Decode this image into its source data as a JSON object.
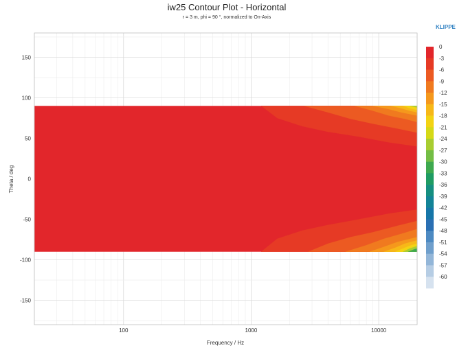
{
  "chart_data": {
    "type": "heatmap",
    "title": "iw25 Contour Plot - Horizontal",
    "subtitle": "r = 3 m, phi = 90 °, normalized to On-Axis",
    "xlabel": "Frequency / Hz",
    "ylabel": "Theta / deg",
    "x_scale": "log",
    "xlim": [
      20,
      20000
    ],
    "ylim": [
      -180,
      180
    ],
    "x_ticks": [
      "100",
      "1000",
      "10000"
    ],
    "y_ticks": [
      "150",
      "100",
      "50",
      "0",
      "-50",
      "-100",
      "-150"
    ],
    "data_theta_range": [
      -90,
      90
    ],
    "colorbar": {
      "levels": [
        0,
        -3,
        -6,
        -9,
        -12,
        -15,
        -18,
        -21,
        -24,
        -27,
        -30,
        -33,
        -36,
        -39,
        -42,
        -45,
        -48,
        -51,
        -54,
        -57,
        -60
      ],
      "labels": [
        "0",
        "-3",
        "-6",
        "-9",
        "-12",
        "-15",
        "-18",
        "-21",
        "-24",
        "-27",
        "-30",
        "-33",
        "-36",
        "-39",
        "-42",
        "-45",
        "-48",
        "-51",
        "-54",
        "-57",
        "-60"
      ],
      "colors": [
        "#e2262b",
        "#e63a25",
        "#ec5a22",
        "#f07a1f",
        "#f5981c",
        "#f7b818",
        "#f3d313",
        "#d5d917",
        "#a8cd31",
        "#73bd45",
        "#3ea94f",
        "#1f9c63",
        "#158f80",
        "#138497",
        "#1676a8",
        "#2a6fb3",
        "#4d8ac2",
        "#6f9fcc",
        "#93b6d8",
        "#b6cde4",
        "#d6e2ef"
      ]
    },
    "contours": {
      "upper": [
        {
          "level": -3,
          "edge": [
            [
              1200,
              90
            ],
            [
              1600,
              75
            ],
            [
              2500,
              65
            ],
            [
              4000,
              58
            ],
            [
              7000,
              52
            ],
            [
              12000,
              45
            ],
            [
              20000,
              40
            ]
          ]
        },
        {
          "level": -6,
          "edge": [
            [
              2600,
              90
            ],
            [
              4000,
              82
            ],
            [
              6000,
              74
            ],
            [
              9000,
              68
            ],
            [
              14000,
              62
            ],
            [
              20000,
              57
            ]
          ]
        },
        {
          "level": -9,
          "edge": [
            [
              6500,
              90
            ],
            [
              9000,
              84
            ],
            [
              12000,
              78
            ],
            [
              16000,
              74
            ],
            [
              20000,
              70
            ]
          ]
        },
        {
          "level": -12,
          "edge": [
            [
              9000,
              90
            ],
            [
              12000,
              86
            ],
            [
              15000,
              82
            ],
            [
              20000,
              78
            ]
          ]
        },
        {
          "level": -15,
          "edge": [
            [
              12500,
              90
            ],
            [
              15000,
              87
            ],
            [
              17500,
              84
            ],
            [
              20000,
              82
            ]
          ]
        },
        {
          "level": -18,
          "edge": [
            [
              15500,
              90
            ],
            [
              17500,
              87
            ],
            [
              20000,
              85
            ]
          ]
        },
        {
          "level": -24,
          "edge": [
            [
              17500,
              90
            ],
            [
              20000,
              88
            ]
          ]
        }
      ],
      "lower": [
        {
          "level": -3,
          "edge": [
            [
              1200,
              -90
            ],
            [
              1600,
              -74
            ],
            [
              2500,
              -64
            ],
            [
              4000,
              -57
            ],
            [
              7000,
              -50
            ],
            [
              12000,
              -43
            ],
            [
              20000,
              -38
            ]
          ]
        },
        {
          "level": -6,
          "edge": [
            [
              2800,
              -90
            ],
            [
              4000,
              -80
            ],
            [
              6000,
              -72
            ],
            [
              9000,
              -66
            ],
            [
              14000,
              -58
            ],
            [
              20000,
              -52
            ]
          ]
        },
        {
          "level": -9,
          "edge": [
            [
              5500,
              -90
            ],
            [
              8000,
              -82
            ],
            [
              11000,
              -74
            ],
            [
              15000,
              -68
            ],
            [
              20000,
              -62
            ]
          ]
        },
        {
          "level": -12,
          "edge": [
            [
              8500,
              -90
            ],
            [
              11000,
              -84
            ],
            [
              14000,
              -78
            ],
            [
              20000,
              -72
            ]
          ]
        },
        {
          "level": -15,
          "edge": [
            [
              11000,
              -90
            ],
            [
              13500,
              -85
            ],
            [
              16000,
              -80
            ],
            [
              20000,
              -76
            ]
          ]
        },
        {
          "level": -18,
          "edge": [
            [
              13500,
              -90
            ],
            [
              15500,
              -86
            ],
            [
              18000,
              -82
            ],
            [
              20000,
              -80
            ]
          ]
        },
        {
          "level": -24,
          "edge": [
            [
              15500,
              -90
            ],
            [
              17500,
              -86
            ],
            [
              20000,
              -83
            ]
          ]
        },
        {
          "level": -30,
          "edge": [
            [
              17000,
              -90
            ],
            [
              19000,
              -87
            ],
            [
              20000,
              -86
            ]
          ]
        }
      ]
    }
  },
  "brand_label": "KLIPPE"
}
